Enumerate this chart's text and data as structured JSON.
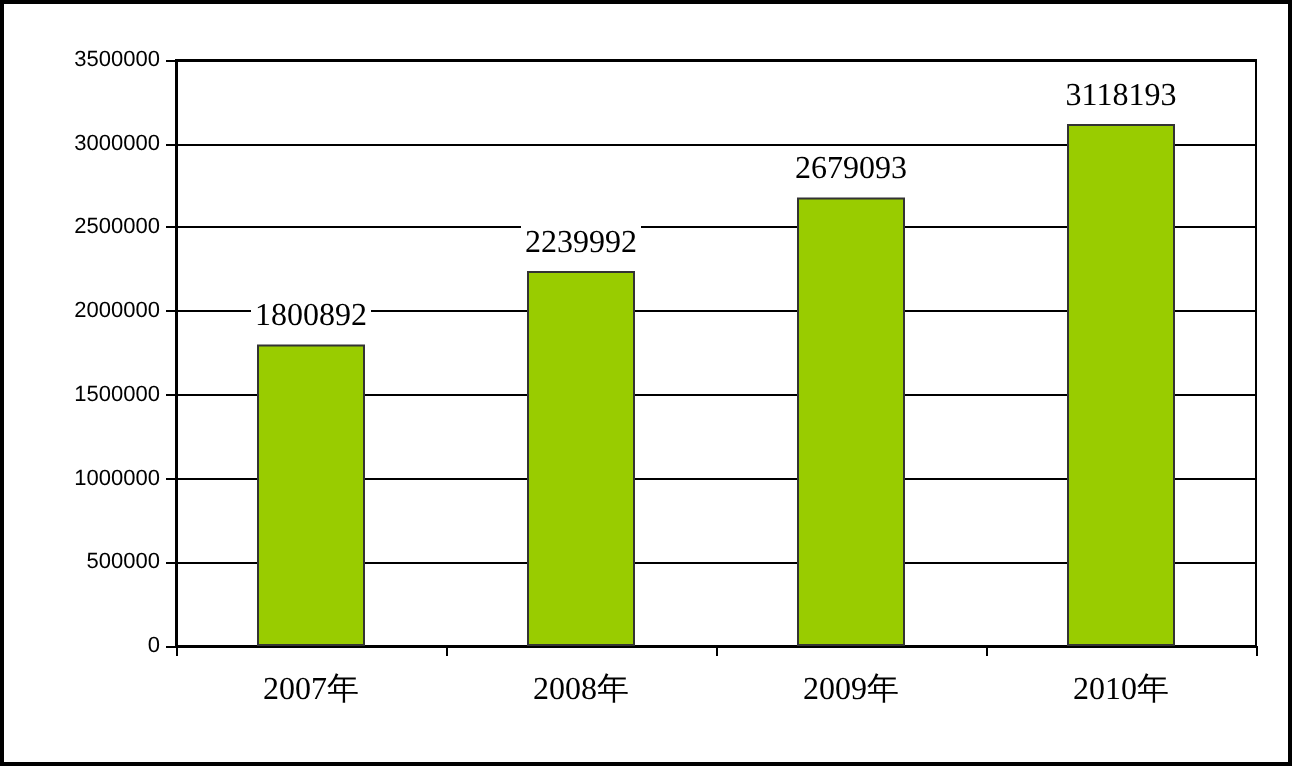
{
  "chart_data": {
    "type": "bar",
    "categories": [
      "2007年",
      "2008年",
      "2009年",
      "2010年"
    ],
    "values": [
      1800892,
      2239992,
      2679093,
      3118193
    ],
    "color": "#99cc00",
    "ylim": [
      0,
      3500000
    ],
    "yticks": [
      0,
      500000,
      1000000,
      1500000,
      2000000,
      2500000,
      3000000,
      3500000
    ],
    "grid": "y",
    "data_labels": true
  }
}
